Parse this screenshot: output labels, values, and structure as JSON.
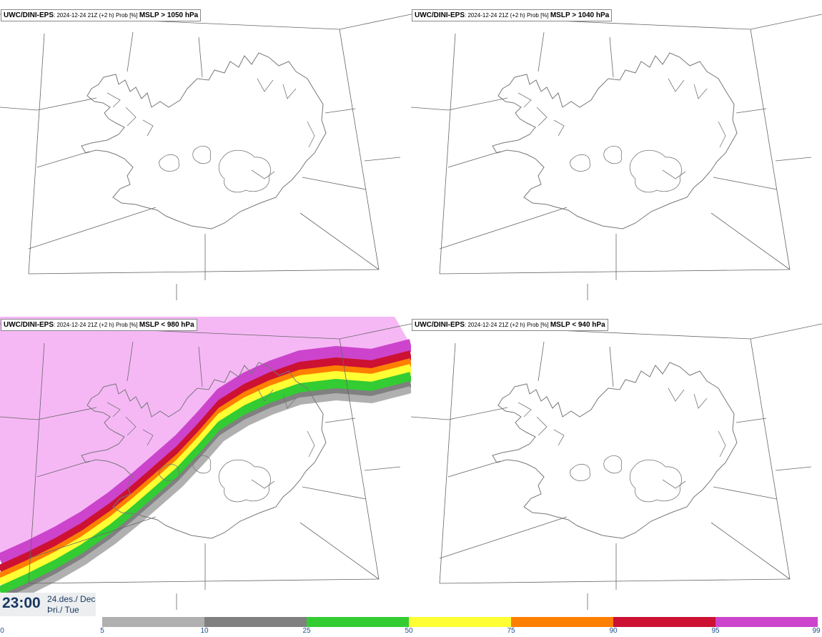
{
  "panels": [
    {
      "model": "UWC/DINI-EPS",
      "meta": ": 2024-12-24 21Z (+2 h) Prob [%] ",
      "field": "MSLP > 1050 hPa",
      "filled": false
    },
    {
      "model": "UWC/DINI-EPS",
      "meta": ": 2024-12-24 21Z (+2 h) Prob [%] ",
      "field": "MSLP > 1040 hPa",
      "filled": false
    },
    {
      "model": "UWC/DINI-EPS",
      "meta": ": 2024-12-24 21Z (+2 h) Prob [%] ",
      "field": "MSLP < 980 hPa",
      "filled": true
    },
    {
      "model": "UWC/DINI-EPS",
      "meta": ": 2024-12-24 21Z (+2 h) Prob [%] ",
      "field": "MSLP < 940 hPa",
      "filled": false
    }
  ],
  "time": {
    "clock": "23:00",
    "date_line1": "24.des./ Dec",
    "date_line2": "Þri./ Tue"
  },
  "legend": {
    "ticks": [
      "0",
      "5",
      "10",
      "25",
      "50",
      "75",
      "90",
      "95",
      "99"
    ],
    "colors": [
      "#ffffff",
      "#b0b0b0",
      "#808080",
      "#33cc33",
      "#ffff33",
      "#ff7f00",
      "#cc1133",
      "#cc44cc",
      "#f5b8f5"
    ]
  }
}
